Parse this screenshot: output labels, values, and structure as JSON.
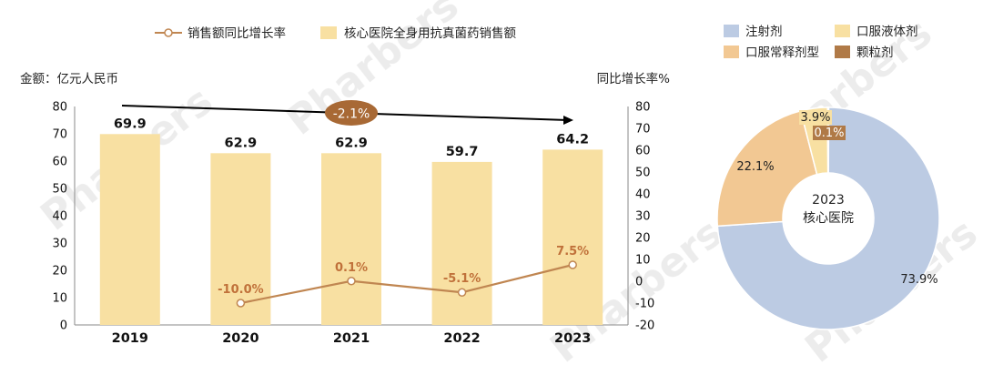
{
  "chart_data": [
    {
      "type": "bar",
      "categories": [
        "2019",
        "2020",
        "2021",
        "2022",
        "2023"
      ],
      "series": [
        {
          "name": "核心医院全身用抗真菌药销售额",
          "values": [
            69.9,
            62.9,
            62.9,
            59.7,
            64.2
          ],
          "axis": "left"
        },
        {
          "name": "销售额同比增长率",
          "type": "line",
          "values": [
            null,
            -10.0,
            0.1,
            -5.1,
            7.5
          ],
          "labels": [
            "",
            "-10.0%",
            "0.1%",
            "-5.1%",
            "7.5%"
          ],
          "axis": "right"
        }
      ],
      "bar_labels": [
        "69.9",
        "62.9",
        "62.9",
        "59.7",
        "64.2"
      ],
      "y_left_label": "金额：亿元人民币",
      "y_left_ticks": [
        "0",
        "10",
        "20",
        "30",
        "40",
        "50",
        "60",
        "70",
        "80"
      ],
      "ylim_left": [
        0,
        80
      ],
      "y_right_label": "同比增长率%",
      "y_right_ticks": [
        "-20",
        "-10",
        "0",
        "10",
        "20",
        "30",
        "40",
        "50",
        "60",
        "70",
        "80"
      ],
      "ylim_right": [
        -20,
        80
      ],
      "annotation": {
        "text": "-2.1%",
        "from": "2019",
        "to": "2023"
      },
      "colors": {
        "bar": "#f8e0a2",
        "line": "#c08651",
        "label": "#c0713a",
        "arrow": "#000000",
        "annotation_bg": "#a86935",
        "annotation_text": "#ffffff"
      }
    },
    {
      "type": "pie",
      "center_label": [
        "2023",
        "核心医院"
      ],
      "slices": [
        {
          "name": "注射剂",
          "value": 73.9,
          "label": "73.9%",
          "color": "#bccbe3"
        },
        {
          "name": "口服常释剂型",
          "value": 22.1,
          "label": "22.1%",
          "color": "#f2c893"
        },
        {
          "name": "口服液体剂",
          "value": 3.9,
          "label": "3.9%",
          "color": "#f8e0a2"
        },
        {
          "name": "颗粒剂",
          "value": 0.1,
          "label": "0.1%",
          "color": "#b07a47"
        }
      ],
      "legend_order": [
        "注射剂",
        "口服液体剂",
        "口服常释剂型",
        "颗粒剂"
      ]
    }
  ],
  "watermark": "Pharbers"
}
